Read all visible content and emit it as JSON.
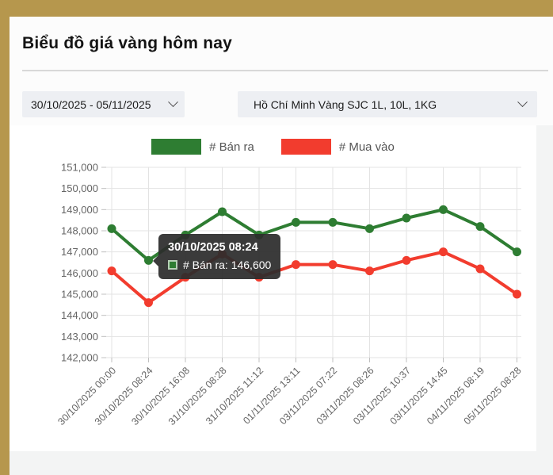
{
  "page": {
    "title": "Biểu đồ giá vàng hôm nay"
  },
  "filters": {
    "date_range": {
      "value": "30/10/2025 - 05/11/2025"
    },
    "market": {
      "value": "Hồ Chí Minh Vàng SJC 1L, 10L, 1KG"
    }
  },
  "tooltip": {
    "title": "30/10/2025 08:24",
    "text": "# Bán ra: 146,600",
    "series": "# Bán ra",
    "value": "146,600",
    "swatch_color": "#2e7d32"
  },
  "colors": {
    "accent_gold": "#b6974d",
    "sell_green": "#2e7d32",
    "buy_red": "#f23c2e",
    "grid": "#e3e3e3",
    "tick": "#c0c0c0",
    "axis_text": "#656565"
  },
  "chart_data": {
    "type": "line",
    "x": [
      "30/10/2025 00:00",
      "30/10/2025 08:24",
      "30/10/2025 16:08",
      "31/10/2025 08:28",
      "31/10/2025 11:12",
      "01/11/2025 13:11",
      "03/11/2025 07:22",
      "03/11/2025 08:26",
      "03/11/2025 10:37",
      "03/11/2025 14:45",
      "04/11/2025 08:19",
      "05/11/2025 08:28"
    ],
    "series": [
      {
        "name": "# Bán ra",
        "color": "#2e7d32",
        "values": [
          148100,
          146600,
          147800,
          148900,
          147800,
          148400,
          148400,
          148100,
          148600,
          149000,
          148200,
          147000
        ]
      },
      {
        "name": "# Mua vào",
        "color": "#f23c2e",
        "values": [
          146100,
          144600,
          145800,
          146900,
          145800,
          146400,
          146400,
          146100,
          146600,
          147000,
          146200,
          145000
        ]
      }
    ],
    "ylim": [
      142000,
      151000
    ],
    "ytick_step": 1000,
    "ytick_labels": [
      "151,000",
      "150,000",
      "149,000",
      "148,000",
      "147,000",
      "146,000",
      "145,000",
      "144,000",
      "143,000",
      "142,000"
    ],
    "grid": true,
    "legend_position": "top",
    "xlabel": "",
    "ylabel": ""
  }
}
